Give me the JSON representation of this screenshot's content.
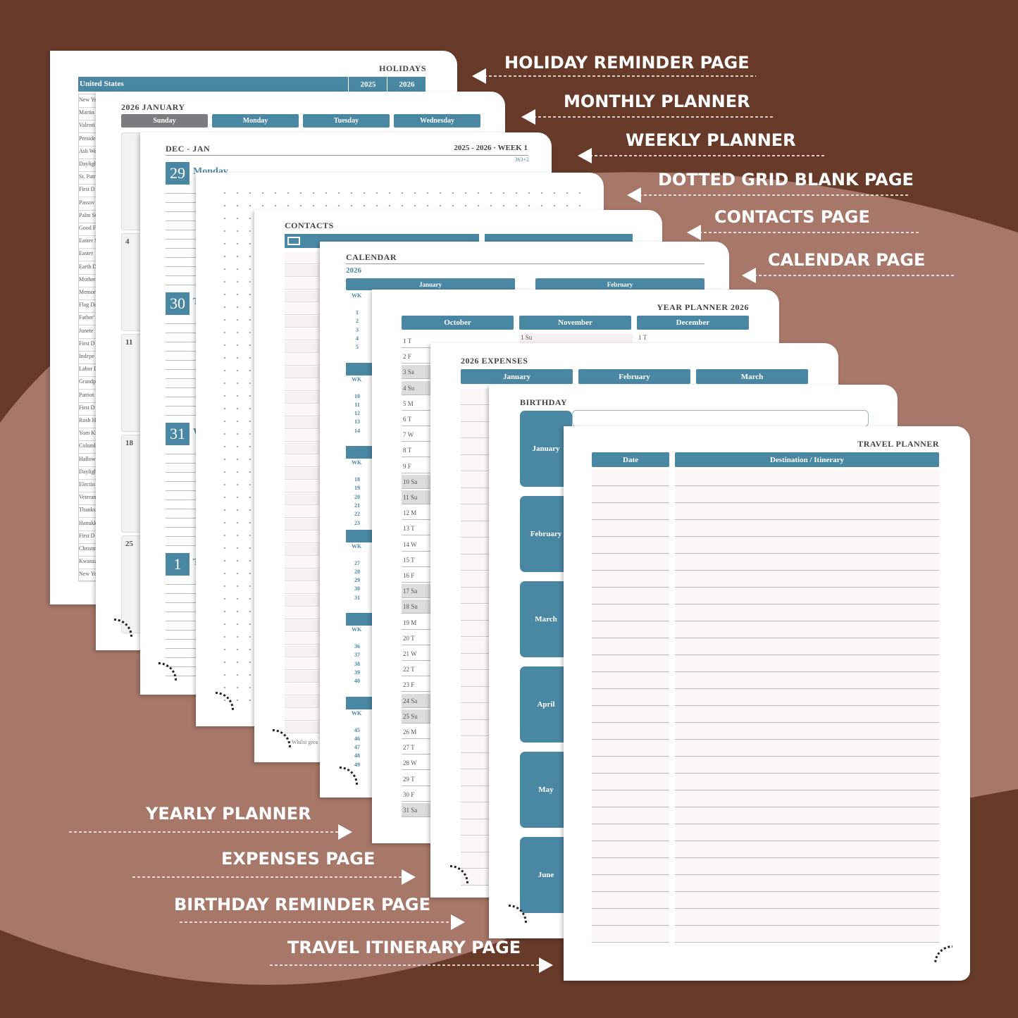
{
  "callouts": [
    "HOLIDAY REMINDER PAGE",
    "MONTHLY PLANNER",
    "WEEKLY PLANNER",
    "DOTTED GRID BLANK PAGE",
    "CONTACTS PAGE",
    "CALENDAR PAGE",
    "YEARLY PLANNER",
    "EXPENSES PAGE",
    "BIRTHDAY REMINDER PAGE",
    "TRAVEL ITINERARY PAGE"
  ],
  "holidays": {
    "title": "HOLIDAYS",
    "country": "United States",
    "years": [
      "2025",
      "2026"
    ],
    "rows": [
      "New Ye",
      "Martin",
      "Valenti",
      "Preside",
      "Ash We",
      "Dayligh",
      "St. Patr",
      "First D",
      "Passov",
      "Palm Su",
      "Good F",
      "Easter S",
      "Easter",
      "Earth D",
      "Mother",
      "Memor",
      "Flag Da",
      "Father'",
      "Junete",
      "First D",
      "Indepe",
      "Labor D",
      "Grandp",
      "Patriot",
      "First D",
      "Rosh H",
      "Yom Ki",
      "Columb",
      "Hallow",
      "Dayligh",
      "Electio",
      "Veteran",
      "Thanks",
      "Hanukk",
      "First D",
      "Christm",
      "Kwanza",
      "New Ye"
    ]
  },
  "monthly": {
    "title": "2026 JANUARY",
    "days": [
      "Sunday",
      "Monday",
      "Tuesday",
      "Wednesday"
    ],
    "dates": [
      "4",
      "11",
      "18",
      "25"
    ]
  },
  "weekly": {
    "range": "DEC - JAN",
    "week": "2025 - 2026 · WEEK 1",
    "counter": "363+2",
    "days": [
      {
        "num": "29",
        "name": "Monday"
      },
      {
        "num": "30",
        "name": "T"
      },
      {
        "num": "31",
        "name": "W"
      },
      {
        "num": "1",
        "name": "T"
      }
    ]
  },
  "contacts": {
    "title": "CONTACTS",
    "footer": "Whilst grea"
  },
  "calendar": {
    "title": "CALENDAR",
    "year": "2026",
    "months": [
      "January",
      "February"
    ],
    "wk": "WK",
    "weeks": [
      [
        "1",
        "2",
        "3",
        "4",
        "5"
      ],
      [
        "10",
        "11",
        "12",
        "13",
        "14"
      ],
      [
        "18",
        "19",
        "20",
        "21",
        "22",
        "23"
      ],
      [
        "27",
        "28",
        "29",
        "30",
        "31"
      ],
      [
        "36",
        "37",
        "38",
        "39",
        "40"
      ],
      [
        "45",
        "46",
        "47",
        "48",
        "49"
      ]
    ]
  },
  "year_planner": {
    "title": "YEAR PLANNER 2026",
    "months": [
      "October",
      "November",
      "December"
    ],
    "october": [
      "1 T",
      "2 F",
      "3 Sa",
      "4 Su",
      "5 M",
      "6 T",
      "7 W",
      "8 T",
      "9 F",
      "10 Sa",
      "11 Su",
      "12 M",
      "13 T",
      "14 W",
      "15 T",
      "16 F",
      "17 Sa",
      "18 Su",
      "19 M",
      "20 T",
      "21 W",
      "22 T",
      "23 F",
      "24 Sa",
      "25 Su",
      "26 M",
      "27 T",
      "28 W",
      "29 T",
      "30 F",
      "31 Sa"
    ],
    "november_first": "1 Su",
    "december_first": "1 T"
  },
  "expenses": {
    "title": "2026 EXPENSES",
    "months": [
      "January",
      "February",
      "March"
    ]
  },
  "birthday": {
    "title": "BIRTHDAY",
    "months": [
      "January",
      "February",
      "March",
      "April",
      "May",
      "June"
    ]
  },
  "travel": {
    "title": "TRAVEL PLANNER",
    "columns": [
      "Date",
      "Destination / Itinerary"
    ]
  }
}
